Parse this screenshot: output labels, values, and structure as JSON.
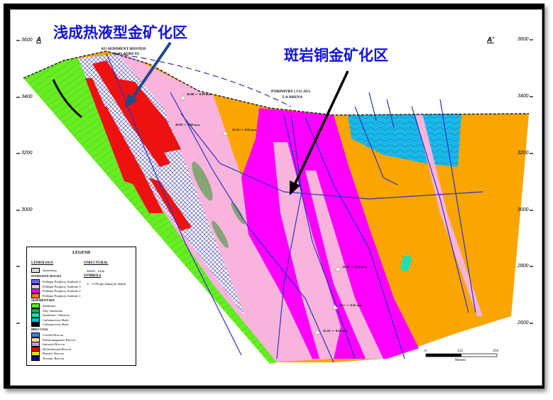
{
  "annotations": {
    "epithermal": "浅成热液型金矿化区",
    "porphyry": "斑岩铜金矿化区"
  },
  "section": {
    "start": "A",
    "end": "A'"
  },
  "elevation_ticks": [
    "3600",
    "3400",
    "3200",
    "3000",
    "2800",
    "2600"
  ],
  "map_labels": {
    "au_sediment": "AU-SEDIMENT HOSTED",
    "calaorco": "(CALAORCO)",
    "porphyry": "PORPHYRY ( CU-AU)",
    "la_arena": "LA ARENA"
  },
  "ages": [
    "26.86 +/- 0.58 m.a.",
    "26.03 +/- 0.69 m.a.",
    "25.53 +/- 0.52 m.a.",
    "24.86 +/- 0.58 m.a.",
    "24.1 +/- 0.55 m.a.",
    "25.22 +/- 0.54 m.a."
  ],
  "scale": {
    "ticks": [
      "0",
      "125",
      "250"
    ],
    "unit": "Meters"
  },
  "legend": {
    "title": "LEGEND",
    "lithology": "LITHOLOGY",
    "structural": "STRUCTURAL",
    "symbols": "SYMBOLS",
    "fault": "Fault",
    "fault_color": "#3333cc",
    "age_symbol": "U-Pb age dating (at depth)",
    "quaternary": {
      "label": "Quaternary",
      "color": "#d8d8d8"
    },
    "intrusive_title": "INTRUSIVE ROCKS",
    "intrusive": [
      {
        "label": "Feldspar Porphyry Andesite 4",
        "color": "#6666ee"
      },
      {
        "label": "Feldspar Porphyry Andesite 3",
        "color": "#f7b8e0"
      },
      {
        "label": "Feldspar Porphyry Andesite 2",
        "color": "#ff00ff"
      },
      {
        "label": "Feldspar Porphyry Andesite 1",
        "color": "#f08000"
      }
    ],
    "sedimentary_title": "SEDIMENTARY",
    "sedimentary": [
      {
        "label": "Sandstone",
        "color": "#55ee22"
      },
      {
        "label": "Silty Sandstone",
        "color": "#20a060"
      },
      {
        "label": "Sandstone / Siltstone",
        "color": "#20e0b0"
      },
      {
        "label": "Carbonaceous Shale",
        "color": "#10b8e8"
      },
      {
        "label": "Carbonaceous Shale",
        "color": "#000000"
      }
    ],
    "breccias_title": "BRECCIAS",
    "breccias": [
      {
        "label": "Crackel Breccia",
        "color": "#4080e0"
      },
      {
        "label": "Phreatomagmatic Breccia",
        "color": "#f0d8a0"
      },
      {
        "label": "Intrusive Breccia",
        "color": "#c0a0d0"
      },
      {
        "label": "Hydrothermal Breccia",
        "color": "#ee0000"
      },
      {
        "label": "Phreatic Breccia",
        "color": "#e0e000"
      },
      {
        "label": "Tectonic Breccia",
        "color": "#0000aa"
      }
    ]
  },
  "colors": {
    "orange": "#fba500",
    "pink": "#f8b4dc",
    "magenta": "#ff00ff",
    "green": "#66ee22",
    "blue": "#1ab8ea",
    "red": "#ee1111",
    "annotation": "#1212e0"
  }
}
